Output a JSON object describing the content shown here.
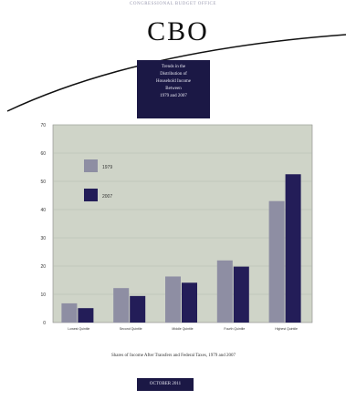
{
  "header": {
    "top_caption": "CONGRESSIONAL BUDGET OFFICE",
    "logo_text": "CBO",
    "title_lines": [
      "Trends in the",
      "Distribution of",
      "Household Income",
      "Between",
      "1979 and 2007"
    ]
  },
  "footer": {
    "x_caption": "Shares of Income After Transfers and Federal Taxes, 1979 and 2007",
    "date": "OCTOBER 2011"
  },
  "chart_data": {
    "type": "bar",
    "categories": [
      "Lowest Quintile",
      "Second Quintile",
      "Middle Quintile",
      "Fourth Quintile",
      "Highest Quintile"
    ],
    "series": [
      {
        "name": "1979",
        "values": [
          6.8,
          12.2,
          16.3,
          22.0,
          43.0
        ],
        "color": "#8e8ea3"
      },
      {
        "name": "2007",
        "values": [
          5.1,
          9.4,
          14.1,
          19.8,
          52.5
        ],
        "color": "#231d58"
      }
    ],
    "y_ticks": [
      0,
      10,
      20,
      30,
      40,
      50,
      60,
      70
    ],
    "ylim": [
      0,
      70
    ],
    "legend_position": "top-left",
    "grid": true,
    "plot_background": "#cfd4c8"
  }
}
